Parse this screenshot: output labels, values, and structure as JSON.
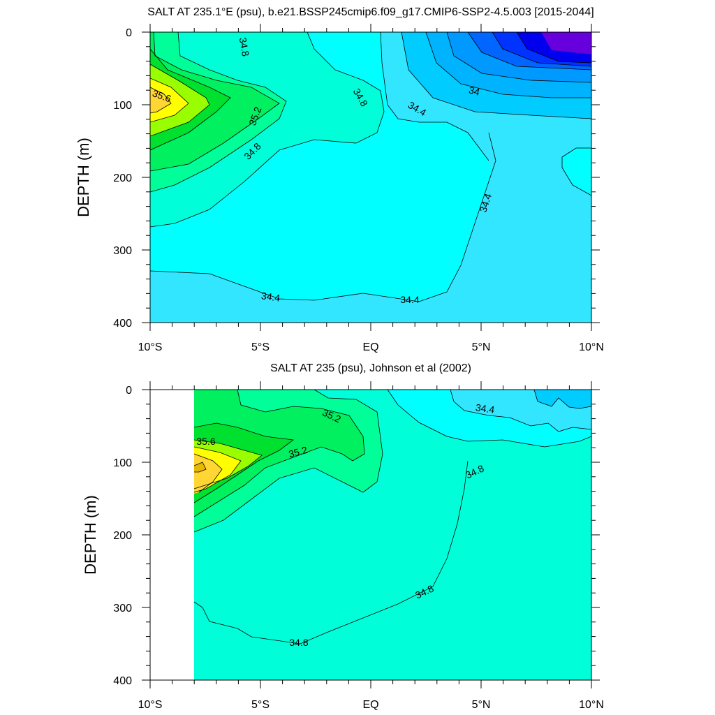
{
  "chart_data": [
    {
      "type": "contour",
      "title": "SALT AT 235.1°E (psu), b.e21.BSSP245cmip6.f09_g17.CMIP6-SSP2-4.5.003 [2015-2044]",
      "ylabel": "DEPTH (m)",
      "xlabel": "",
      "x_ticks": [
        "10°S",
        "5°S",
        "EQ",
        "5°N",
        "10°N"
      ],
      "x_tick_values": [
        -10,
        -5,
        0,
        5,
        10
      ],
      "y_ticks": [
        "0",
        "100",
        "200",
        "300",
        "400"
      ],
      "y_tick_values": [
        0,
        100,
        200,
        300,
        400
      ],
      "xlim": [
        -10,
        10
      ],
      "ylim": [
        400,
        0
      ],
      "data_xlim": [
        -10,
        10
      ],
      "contour_labels": [
        "34.8",
        "35.6",
        "35.2",
        "34.8",
        "34.8",
        "34.4",
        "34",
        "34.4",
        "34.4",
        "34.4"
      ],
      "levels": [
        {
          "value": 34.4,
          "color": "#33e6ff"
        },
        {
          "value": 34.8,
          "color": "#00ffd9"
        },
        {
          "value": 35.0,
          "color": "#00ff99"
        },
        {
          "value": 35.2,
          "color": "#00f060"
        },
        {
          "value": 35.4,
          "color": "#00e02e"
        },
        {
          "value": 35.6,
          "color": "#99ff00"
        },
        {
          "value": 35.8,
          "color": "#ffff00"
        },
        {
          "value": 36.0,
          "color": "#ffd633"
        }
      ]
    },
    {
      "type": "contour",
      "title": "SALT AT 235 (psu), Johnson et al (2002)",
      "ylabel": "DEPTH (m)",
      "xlabel": "",
      "x_ticks": [
        "10°S",
        "5°S",
        "EQ",
        "5°N",
        "10°N"
      ],
      "x_tick_values": [
        -10,
        -5,
        0,
        5,
        10
      ],
      "y_ticks": [
        "0",
        "100",
        "200",
        "300",
        "400"
      ],
      "y_tick_values": [
        0,
        100,
        200,
        300,
        400
      ],
      "xlim": [
        -10,
        10
      ],
      "ylim": [
        400,
        0
      ],
      "data_xlim": [
        -8,
        10
      ],
      "contour_labels": [
        "35.2",
        "35.6",
        "35.2",
        "34.4",
        "34.8",
        "34.8",
        "34.8"
      ],
      "levels": [
        {
          "value": 34.4,
          "color": "#00ffff"
        },
        {
          "value": 34.8,
          "color": "#00ffd9"
        },
        {
          "value": 35.0,
          "color": "#00ff99"
        },
        {
          "value": 35.2,
          "color": "#00f060"
        },
        {
          "value": 35.4,
          "color": "#00e02e"
        },
        {
          "value": 35.6,
          "color": "#99ff00"
        },
        {
          "value": 35.8,
          "color": "#ffff00"
        },
        {
          "value": 36.0,
          "color": "#ffd633"
        }
      ]
    }
  ]
}
